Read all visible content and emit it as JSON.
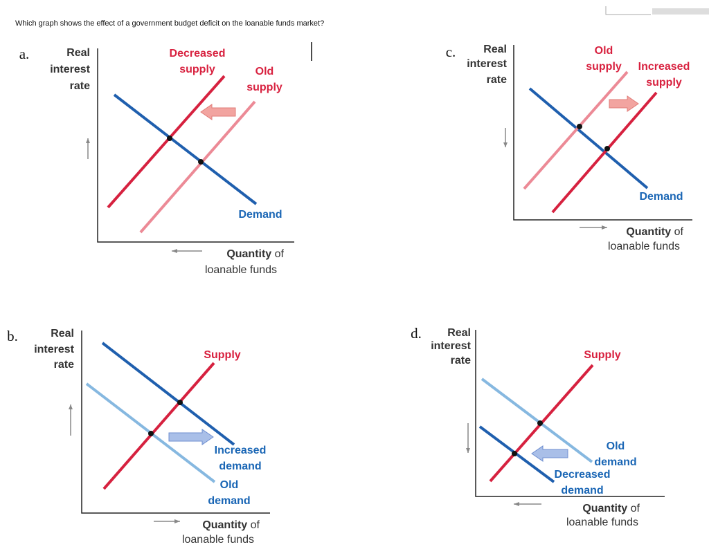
{
  "question": "Which graph shows the effect of a government budget deficit on the loanable funds market?",
  "panels": [
    {
      "letter": "a.",
      "y_axis_label": [
        "Real",
        "interest",
        "rate"
      ],
      "x_axis_label": [
        "Quantity",
        "of",
        "loanable funds"
      ],
      "curve_labels": [
        [
          "Decreased",
          "supply"
        ],
        [
          "Old",
          "supply"
        ],
        [
          "Demand"
        ]
      ]
    },
    {
      "letter": "c.",
      "y_axis_label": [
        "Real",
        "interest",
        "rate"
      ],
      "x_axis_label": [
        "Quantity",
        "of",
        "loanable funds"
      ],
      "curve_labels": [
        [
          "Old",
          "supply"
        ],
        [
          "Increased",
          "supply"
        ],
        [
          "Demand"
        ]
      ]
    },
    {
      "letter": "b.",
      "y_axis_label": [
        "Real",
        "interest",
        "rate"
      ],
      "x_axis_label": [
        "Quantity",
        "of",
        "loanable funds"
      ],
      "curve_labels": [
        [
          "Supply"
        ],
        [
          "Increased",
          "demand"
        ],
        [
          "Old",
          "demand"
        ]
      ]
    },
    {
      "letter": "d.",
      "y_axis_label": [
        "Real",
        "interest",
        "rate"
      ],
      "x_axis_label": [
        "Quantity",
        "of",
        "loanable funds"
      ],
      "curve_labels": [
        [
          "Supply"
        ],
        [
          "Old",
          "demand"
        ],
        [
          "Decreased",
          "demand"
        ]
      ]
    }
  ]
}
